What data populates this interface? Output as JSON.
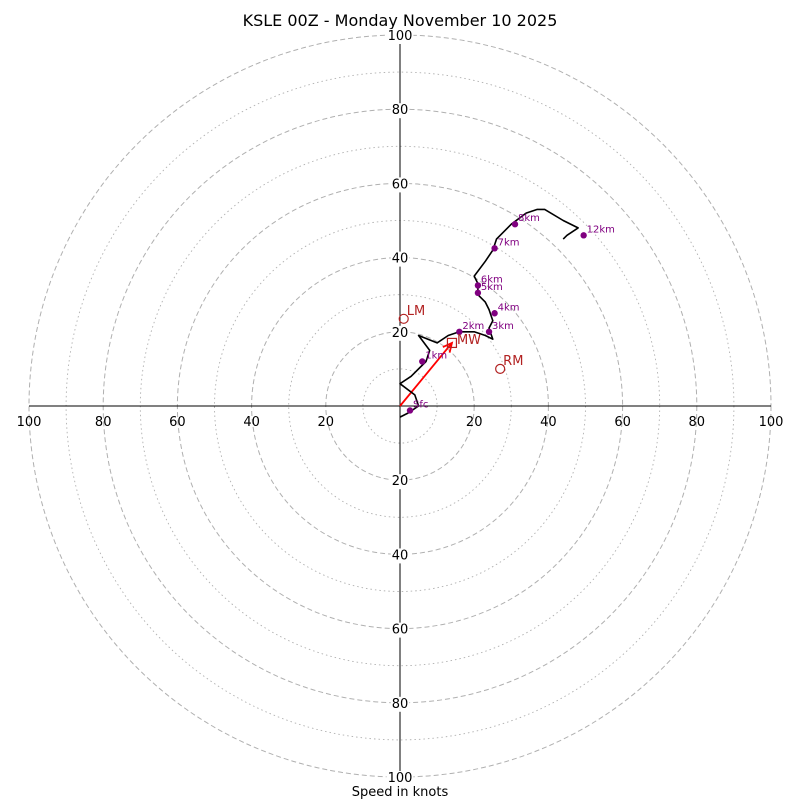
{
  "chart_data": {
    "type": "hodograph",
    "title": "KSLE 00Z - Monday November 10 2025",
    "xlabel": "Speed in knots",
    "xlim": [
      -100,
      100
    ],
    "ylim": [
      -100,
      100
    ],
    "rings_major": [
      20,
      40,
      60,
      80,
      100
    ],
    "rings_minor": [
      10,
      30,
      50,
      70,
      90
    ],
    "axis_ticks": [
      {
        "value": 100,
        "label": "100"
      },
      {
        "value": 80,
        "label": "80"
      },
      {
        "value": 60,
        "label": "60"
      },
      {
        "value": 40,
        "label": "40"
      },
      {
        "value": 20,
        "label": "20"
      }
    ],
    "trace": [
      [
        0,
        -3
      ],
      [
        2,
        -2
      ],
      [
        5,
        0
      ],
      [
        4,
        3
      ],
      [
        0,
        6
      ],
      [
        3,
        8
      ],
      [
        7,
        12
      ],
      [
        8,
        15
      ],
      [
        5,
        19
      ],
      [
        10,
        17
      ],
      [
        13,
        19
      ],
      [
        16,
        20
      ],
      [
        20,
        20
      ],
      [
        23,
        19
      ],
      [
        25,
        18
      ],
      [
        24,
        21
      ],
      [
        25,
        23
      ],
      [
        24,
        26
      ],
      [
        23,
        28
      ],
      [
        21,
        30
      ],
      [
        21,
        33
      ],
      [
        20,
        35
      ],
      [
        23,
        39
      ],
      [
        25,
        42
      ],
      [
        26,
        45
      ],
      [
        30,
        49
      ],
      [
        34,
        52
      ],
      [
        37,
        53
      ],
      [
        39,
        53
      ],
      [
        44,
        50
      ],
      [
        48,
        48
      ],
      [
        45,
        46
      ],
      [
        44,
        45
      ]
    ],
    "height_points": [
      {
        "label": "Sfc",
        "u": 2.7,
        "v": -1.2
      },
      {
        "label": "1km",
        "u": 6,
        "v": 12
      },
      {
        "label": "2km",
        "u": 16,
        "v": 20
      },
      {
        "label": "3km",
        "u": 24,
        "v": 20
      },
      {
        "label": "4km",
        "u": 25.5,
        "v": 25
      },
      {
        "label": "5km",
        "u": 21,
        "v": 30.5
      },
      {
        "label": "6km",
        "u": 21,
        "v": 32.5
      },
      {
        "label": "7km",
        "u": 25.5,
        "v": 42.5
      },
      {
        "label": "8km",
        "u": 31,
        "v": 49
      },
      {
        "label": "12km",
        "u": 49.5,
        "v": 46
      }
    ],
    "mean_wind": {
      "label": "MW",
      "u": 14,
      "v": 17
    },
    "storm_motions": [
      {
        "label": "LM",
        "u": 1,
        "v": 23.5
      },
      {
        "label": "RM",
        "u": 27,
        "v": 10
      }
    ],
    "colors": {
      "trace": "#000000",
      "points": "#800080",
      "motion": "#b22222",
      "mw_arrow": "#ff0000",
      "rings": "#b0b0b0",
      "axes": "#000000"
    }
  }
}
